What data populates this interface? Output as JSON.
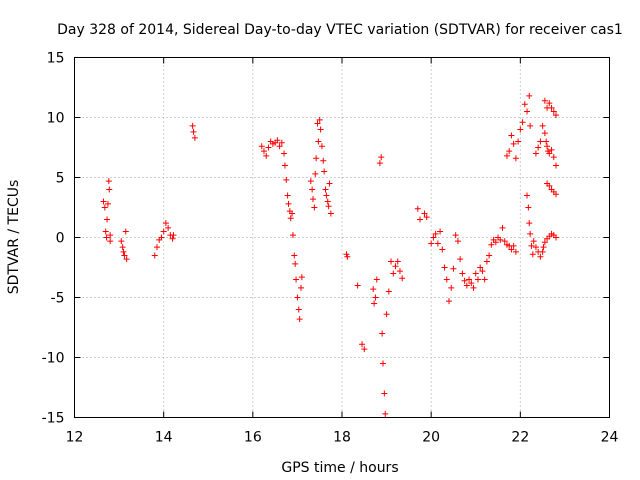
{
  "chart_data": {
    "type": "scatter",
    "title": "Day 328 of 2014, Sidereal Day-to-day VTEC variation (SDTVAR) for receiver cas1",
    "xlabel": "GPS time / hours",
    "ylabel": "SDTVAR / TECUs",
    "xlim": [
      12,
      24
    ],
    "ylim": [
      -15,
      15
    ],
    "xticks": [
      "12",
      "14",
      "16",
      "18",
      "20",
      "22",
      "24"
    ],
    "yticks": [
      "15",
      "10",
      "5",
      "0",
      "-5",
      "-10",
      "-15"
    ],
    "grid": true,
    "marker": "+",
    "color": "#ff0000",
    "series": [
      {
        "name": "SDTVAR",
        "x": [
          12.65,
          12.68,
          12.7,
          12.72,
          12.73,
          12.75,
          12.77,
          12.78,
          12.8,
          12.8,
          13.05,
          13.08,
          13.1,
          13.12,
          13.15,
          13.17,
          13.8,
          13.85,
          13.9,
          13.95,
          14.0,
          14.05,
          14.1,
          14.15,
          14.2,
          14.22,
          14.65,
          14.67,
          14.7,
          16.2,
          16.25,
          16.3,
          16.35,
          16.4,
          16.45,
          16.5,
          16.55,
          16.6,
          16.65,
          16.7,
          16.72,
          16.75,
          16.78,
          16.8,
          16.83,
          16.85,
          16.88,
          16.9,
          16.93,
          16.95,
          16.97,
          17.0,
          17.03,
          17.05,
          17.08,
          17.1,
          17.3,
          17.33,
          17.35,
          17.38,
          17.4,
          17.42,
          17.45,
          17.47,
          17.5,
          17.52,
          17.55,
          17.58,
          17.6,
          17.63,
          17.65,
          17.68,
          17.7,
          17.72,
          17.75,
          18.1,
          18.12,
          18.35,
          18.45,
          18.5,
          18.7,
          18.72,
          18.75,
          18.78,
          18.85,
          18.88,
          18.9,
          18.92,
          18.95,
          18.97,
          19.0,
          19.05,
          19.1,
          19.15,
          19.2,
          19.25,
          19.3,
          19.35,
          19.7,
          19.75,
          19.85,
          19.9,
          20.0,
          20.05,
          20.1,
          20.15,
          20.2,
          20.25,
          20.3,
          20.35,
          20.4,
          20.45,
          20.5,
          20.55,
          20.6,
          20.65,
          20.7,
          20.75,
          20.8,
          20.85,
          20.9,
          20.95,
          21.0,
          21.05,
          21.1,
          21.15,
          21.2,
          21.25,
          21.3,
          21.35,
          21.4,
          21.45,
          21.5,
          21.55,
          21.6,
          21.65,
          21.7,
          21.75,
          21.8,
          21.85,
          21.9,
          21.7,
          21.75,
          21.8,
          21.85,
          21.9,
          21.95,
          22.0,
          22.05,
          22.1,
          22.15,
          22.2,
          22.22,
          22.15,
          22.18,
          22.2,
          22.22,
          22.25,
          22.28,
          22.3,
          22.35,
          22.4,
          22.45,
          22.5,
          22.52,
          22.55,
          22.6,
          22.65,
          22.7,
          22.75,
          22.8,
          22.35,
          22.4,
          22.45,
          22.5,
          22.55,
          22.58,
          22.6,
          22.62,
          22.65,
          22.7,
          22.75,
          22.8,
          22.55,
          22.6,
          22.65,
          22.7,
          22.75,
          22.8,
          22.6,
          22.65,
          22.7,
          22.75,
          22.8
        ],
        "y": [
          3.0,
          2.5,
          0.5,
          0.0,
          1.5,
          2.8,
          4.7,
          4.0,
          0.2,
          -0.3,
          -0.3,
          -0.8,
          -1.2,
          -1.5,
          0.5,
          -1.8,
          -1.5,
          -0.8,
          -0.2,
          0.0,
          0.5,
          1.2,
          0.8,
          0.2,
          -0.1,
          0.2,
          9.3,
          8.8,
          8.3,
          7.6,
          7.2,
          6.8,
          7.5,
          8.0,
          7.8,
          7.9,
          8.1,
          7.6,
          7.9,
          7.0,
          6.0,
          4.8,
          3.5,
          2.8,
          2.2,
          1.6,
          2.0,
          0.2,
          -1.5,
          -2.2,
          -3.5,
          -5.0,
          -6.0,
          -6.8,
          -4.2,
          -3.3,
          4.7,
          4.0,
          3.2,
          2.5,
          5.3,
          6.6,
          9.5,
          8.0,
          9.8,
          9.0,
          7.6,
          6.4,
          5.5,
          4.0,
          3.5,
          3.0,
          2.6,
          4.5,
          2.0,
          -1.4,
          -1.6,
          -4.0,
          -8.9,
          -9.3,
          -4.3,
          -5.5,
          -5.0,
          -3.5,
          6.2,
          6.7,
          -8.0,
          -10.5,
          -13.0,
          -14.7,
          -6.4,
          -4.5,
          -2.0,
          -3.0,
          -2.4,
          -2.0,
          -2.8,
          -3.4,
          2.4,
          1.5,
          2.0,
          1.7,
          -0.5,
          0.0,
          0.3,
          -0.5,
          0.5,
          -1.0,
          -2.5,
          -3.5,
          -5.3,
          -4.2,
          -2.6,
          0.2,
          -0.3,
          -1.8,
          -3.0,
          -3.6,
          -4.0,
          -3.5,
          -3.8,
          -4.2,
          -3.0,
          -3.5,
          -2.5,
          -2.8,
          -3.5,
          -2.0,
          -1.5,
          -0.6,
          -0.2,
          -0.4,
          0.0,
          -0.2,
          0.8,
          -0.3,
          -0.6,
          -0.7,
          -1.0,
          -0.7,
          -1.2,
          6.8,
          7.2,
          8.5,
          7.8,
          6.6,
          8.0,
          9.0,
          9.6,
          11.1,
          10.5,
          11.8,
          9.3,
          3.5,
          2.5,
          1.2,
          0.3,
          -0.7,
          -1.4,
          -0.3,
          -0.8,
          -1.2,
          -1.6,
          -1.2,
          -0.8,
          -0.4,
          -0.1,
          0.1,
          0.3,
          0.2,
          0.0,
          7.0,
          7.5,
          8.0,
          9.3,
          8.7,
          8.0,
          7.6,
          7.2,
          7.0,
          7.3,
          6.7,
          6.0,
          11.4,
          10.8,
          11.2,
          10.8,
          10.5,
          10.2,
          4.5,
          4.3,
          4.0,
          3.8,
          3.6
        ]
      }
    ]
  }
}
